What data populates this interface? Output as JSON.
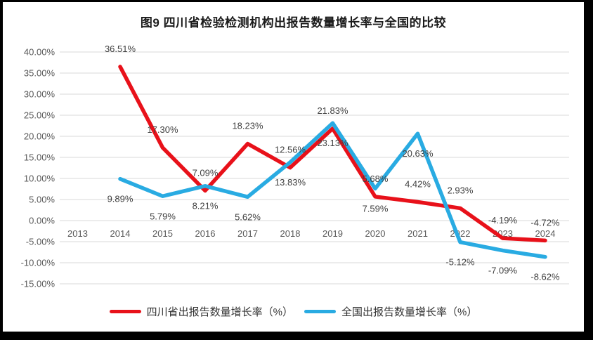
{
  "chart_data": {
    "type": "line",
    "title": "图9  四川省检验检测机构出报告数量增长率与全国的比较",
    "categories": [
      "2013",
      "2014",
      "2015",
      "2016",
      "2017",
      "2018",
      "2019",
      "2020",
      "2021",
      "2022",
      "2023",
      "2024"
    ],
    "series": [
      {
        "name": "四川省出报告数量增长率（%）",
        "color": "#e8111a",
        "label_position": "above",
        "values": [
          null,
          36.51,
          17.3,
          7.09,
          18.23,
          12.56,
          21.83,
          5.68,
          4.42,
          2.93,
          -4.19,
          -4.72
        ],
        "labels": [
          "",
          "36.51%",
          "17.30%",
          "7.09%",
          "18.23%",
          "12.56%",
          "21.83%",
          "5.68%",
          "4.42%",
          "2.93%",
          "-4.19%",
          "-4.72%"
        ]
      },
      {
        "name": "全国出报告数量增长率（%）",
        "color": "#29abe2",
        "label_position": "below",
        "values": [
          null,
          9.89,
          5.79,
          8.21,
          5.62,
          13.83,
          23.13,
          7.59,
          20.63,
          -5.12,
          -7.09,
          -8.62
        ],
        "labels": [
          "",
          "9.89%",
          "5.79%",
          "8.21%",
          "5.62%",
          "13.83%",
          "23.13%",
          "7.59%",
          "20.63%",
          "-5.12%",
          "-7.09%",
          "-8.62%"
        ]
      }
    ],
    "y_axis": {
      "ticks": [
        40,
        35,
        30,
        25,
        20,
        15,
        10,
        5,
        0,
        -5,
        -10,
        -15
      ],
      "tick_labels": [
        "40.00%",
        "35.00%",
        "30.00%",
        "25.00%",
        "20.00%",
        "15.00%",
        "10.00%",
        "5.00%",
        "0.00%",
        "-5.00%",
        "-10.00%",
        "-15.00%"
      ],
      "min": -15,
      "max": 40
    },
    "grid": true,
    "legend_position": "bottom",
    "label_format": "0.00%"
  },
  "styles": {
    "grid_color": "#d9d9d9",
    "tick_color": "#595959",
    "data_label_color": "#404040",
    "title_color": "#1a1a1a",
    "frame_color": "#000000",
    "background_color": "#ffffff"
  }
}
